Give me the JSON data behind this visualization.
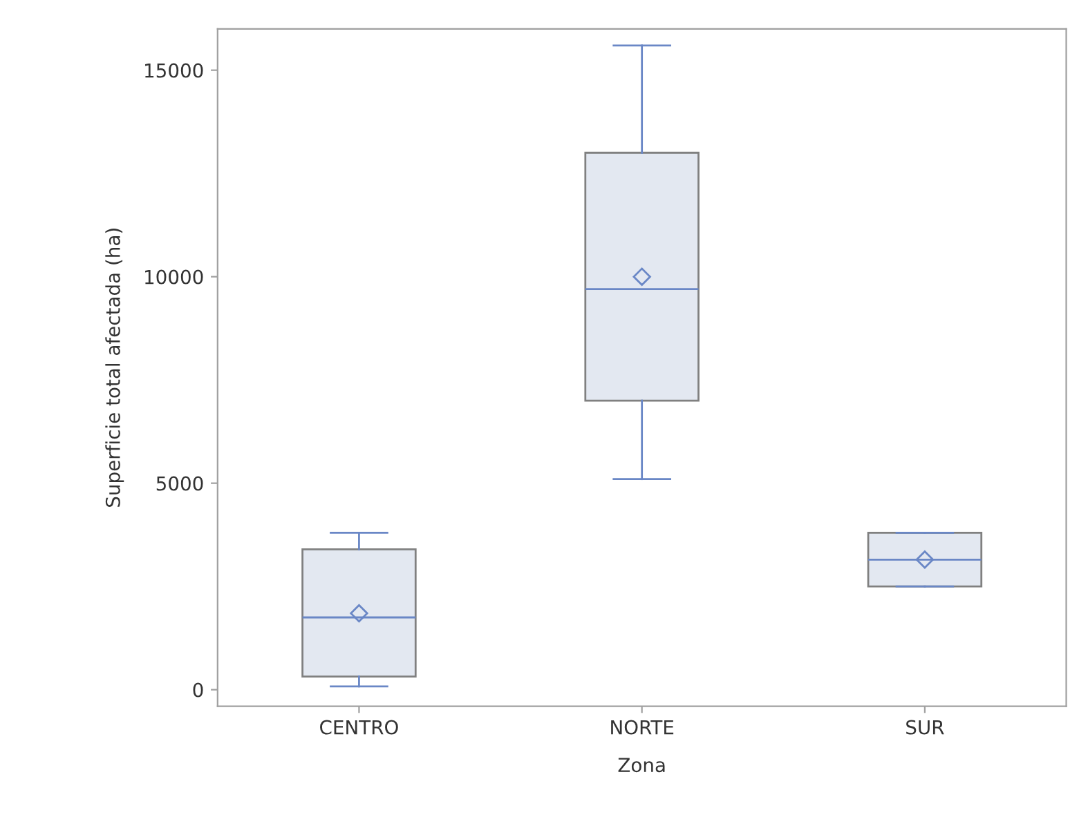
{
  "chart_data": {
    "type": "box",
    "xlabel": "Zona",
    "ylabel": "Superficie total afectada (ha)",
    "categories": [
      "CENTRO",
      "NORTE",
      "SUR"
    ],
    "boxes": [
      {
        "low": 80,
        "q1": 320,
        "median": 1750,
        "q3": 3400,
        "high": 3800,
        "mean": 1850
      },
      {
        "low": 5100,
        "q1": 7000,
        "median": 9700,
        "q3": 13000,
        "high": 15600,
        "mean": 10000
      },
      {
        "low": 2500,
        "q1": 2500,
        "median": 3150,
        "q3": 3800,
        "high": 3800,
        "mean": 3150
      }
    ],
    "color": "#e3e8f1",
    "ylim": [
      -400,
      16000
    ],
    "yticks": [
      0,
      5000,
      10000,
      15000
    ],
    "grid": false,
    "legend": false
  }
}
